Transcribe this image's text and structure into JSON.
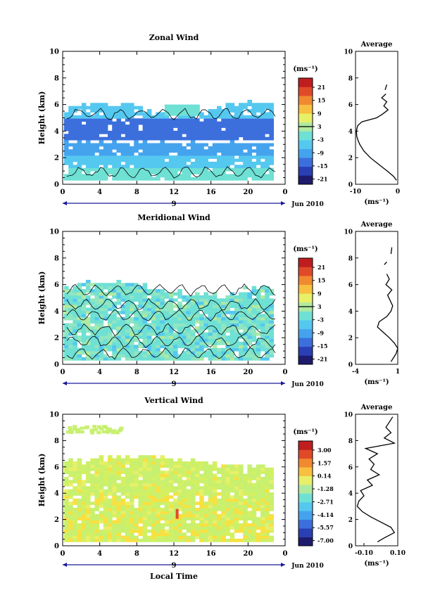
{
  "figure": {
    "x_axis_label": "Local Time",
    "date_label": "Jun 2010",
    "day_label": "9",
    "colorbar_unit": "(ms⁻¹)",
    "profile_title": "Average",
    "profile_unit": "(ms⁻¹)",
    "palette": [
      "#1e1b6e",
      "#2a3fb3",
      "#3c6fdc",
      "#45a3ee",
      "#55c8f0",
      "#6fe0d4",
      "#b0eaa0",
      "#e8f068",
      "#f8c040",
      "#f08a30",
      "#e04a28",
      "#c01e1e"
    ],
    "field_colors": {
      "zonal": [
        "#55c8f0",
        "#45a3ee",
        "#3c6fdc",
        "#6fe0d4"
      ],
      "meridional": [
        "#6fe0d4",
        "#8fe6c0",
        "#55c8f0",
        "#b0eaa0"
      ],
      "vertical": [
        "#c8f070",
        "#d4f060",
        "#e8f068",
        "#f8e040"
      ]
    }
  },
  "chart_data": [
    {
      "type": "heatmap",
      "title": "Zonal Wind",
      "xlabel": "",
      "ylabel": "Height (km)",
      "x_ticks": [
        "0",
        "4",
        "8",
        "12",
        "16",
        "20",
        "0"
      ],
      "y_ticks": [
        "0",
        "2",
        "4",
        "6",
        "8",
        "10"
      ],
      "xlim": [
        0,
        24
      ],
      "ylim": [
        0,
        10
      ],
      "colorbar": {
        "unit": "(ms⁻¹)",
        "ticks": [
          "21",
          "15",
          "9",
          "3",
          "-3",
          "-9",
          "-15",
          "-21"
        ],
        "range": [
          -24,
          24
        ]
      },
      "profile": {
        "title": "Average",
        "xlabel": "(ms⁻¹)",
        "x_ticks": [
          "-10",
          "0"
        ],
        "xlim": [
          -10,
          0
        ],
        "y_ticks": [
          "0",
          "2",
          "4",
          "6",
          "8",
          "10"
        ],
        "height_km": [
          0.3,
          0.6,
          1.0,
          1.5,
          2.0,
          2.5,
          3.0,
          3.3,
          3.6,
          4.0,
          4.4,
          4.7,
          5.0,
          5.3,
          5.6,
          5.9,
          6.2,
          6.5,
          6.8
        ],
        "wind_ms": [
          -0.3,
          -1.0,
          -2.5,
          -4.5,
          -6.5,
          -8.0,
          -9.0,
          -9.4,
          -9.7,
          -9.8,
          -9.5,
          -8.5,
          -5.0,
          -3.5,
          -2.3,
          -3.3,
          -2.6,
          -3.8,
          -2.8
        ],
        "segment2_height_km": [
          7.1,
          7.5
        ],
        "segment2_wind_ms": [
          -3.0,
          -2.6
        ]
      }
    },
    {
      "type": "heatmap",
      "title": "Meridional Wind",
      "xlabel": "",
      "ylabel": "Height (km)",
      "x_ticks": [
        "0",
        "4",
        "8",
        "12",
        "16",
        "20",
        "0"
      ],
      "y_ticks": [
        "0",
        "2",
        "4",
        "6",
        "8",
        "10"
      ],
      "xlim": [
        0,
        24
      ],
      "ylim": [
        0,
        10
      ],
      "colorbar": {
        "unit": "(ms⁻¹)",
        "ticks": [
          "21",
          "15",
          "9",
          "3",
          "-3",
          "-9",
          "-15",
          "-21"
        ],
        "range": [
          -24,
          24
        ]
      },
      "profile": {
        "title": "Average",
        "xlabel": "(ms⁻¹)",
        "x_ticks": [
          "-4",
          "1"
        ],
        "xlim": [
          -4,
          1
        ],
        "y_ticks": [
          "0",
          "2",
          "4",
          "6",
          "8",
          "10"
        ],
        "height_km": [
          0.2,
          0.5,
          0.8,
          1.2,
          1.6,
          2.0,
          2.4,
          2.8,
          3.2,
          3.6,
          4.0,
          4.4,
          4.8,
          5.2,
          5.6,
          6.0,
          6.4,
          6.8
        ],
        "wind_ms": [
          0.2,
          0.5,
          0.8,
          1.0,
          0.6,
          0.0,
          -0.7,
          -1.4,
          -1.2,
          -0.3,
          0.2,
          0.4,
          0.1,
          -0.2,
          0.3,
          -0.4,
          0.0,
          -0.3
        ],
        "segment2_height_km": [
          7.5,
          7.7
        ],
        "segment2_wind_ms": [
          -0.6,
          -0.3
        ],
        "segment3_height_km": [
          8.3,
          8.8
        ],
        "segment3_wind_ms": [
          0.2,
          0.3
        ]
      }
    },
    {
      "type": "heatmap",
      "title": "Vertical Wind",
      "xlabel": "Local Time",
      "ylabel": "Height (km)",
      "x_ticks": [
        "0",
        "4",
        "8",
        "12",
        "16",
        "20",
        "0"
      ],
      "y_ticks": [
        "0",
        "2",
        "4",
        "6",
        "8",
        "10"
      ],
      "xlim": [
        0,
        24
      ],
      "ylim": [
        0,
        10
      ],
      "colorbar": {
        "unit": "(ms⁻¹)",
        "ticks": [
          "3.00",
          "1.57",
          "0.14",
          "-1.28",
          "-2.71",
          "-4.14",
          "-5.57",
          "-7.00"
        ],
        "range": [
          -8,
          4
        ]
      },
      "profile": {
        "title": "Average",
        "xlabel": "(ms⁻¹)",
        "x_ticks": [
          "-0.10",
          "0.10"
        ],
        "xlim": [
          -0.15,
          0.1
        ],
        "y_ticks": [
          "0",
          "2",
          "4",
          "6",
          "8",
          "10"
        ],
        "height_km": [
          0.3,
          0.6,
          1.0,
          1.4,
          1.8,
          2.2,
          2.6,
          3.0,
          3.4,
          3.8,
          4.2,
          4.6,
          5.0,
          5.4,
          5.8,
          6.2,
          6.6,
          7.0,
          7.4,
          7.8,
          8.2,
          8.6,
          9.0,
          9.4,
          9.8
        ],
        "wind_ms": [
          -0.02,
          0.02,
          0.08,
          0.06,
          0.0,
          -0.06,
          -0.11,
          -0.14,
          -0.13,
          -0.1,
          -0.12,
          -0.05,
          -0.08,
          -0.01,
          -0.06,
          -0.04,
          -0.07,
          -0.02,
          -0.09,
          0.08,
          0.02,
          0.06,
          0.03,
          0.05,
          0.07
        ]
      }
    }
  ]
}
